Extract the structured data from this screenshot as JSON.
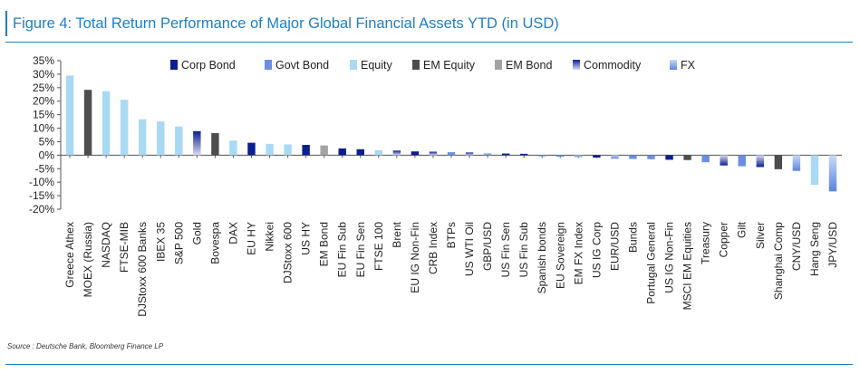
{
  "title": "Figure 4: Total Return Performance of Major Global Financial Assets YTD (in USD)",
  "source": "Source : Deutsche Bank, Bloomberg Finance LP",
  "colors": {
    "accent": "#1f7ec4",
    "Corp Bond": "#0b1f8f",
    "Govt Bond": "#6b8fe0",
    "Equity": "#a9d9f3",
    "EM Equity": "#4d4d4d",
    "EM Bond": "#a3a3a3",
    "Commodity": "#0b1f8f",
    "FX": "#6b8fe0"
  },
  "chart_data": {
    "type": "bar",
    "title": "Figure 4: Total Return Performance of Major Global Financial Assets YTD (in USD)",
    "xlabel": "",
    "ylabel": "",
    "ylim": [
      -20,
      35
    ],
    "yticks": [
      "35%",
      "30%",
      "25%",
      "20%",
      "15%",
      "10%",
      "5%",
      "0%",
      "-5%",
      "-10%",
      "-15%",
      "-20%"
    ],
    "ytick_values": [
      35,
      30,
      25,
      20,
      15,
      10,
      5,
      0,
      -5,
      -10,
      -15,
      -20
    ],
    "legend": [
      "Corp Bond",
      "Govt Bond",
      "Equity",
      "EM Equity",
      "EM Bond",
      "Commodity",
      "FX"
    ],
    "legend_position": "top-right",
    "grid": false,
    "categories": [
      "Greece Athex",
      "MOEX (Russia)",
      "NASDAQ",
      "FTSE-MIB",
      "DJStoxx 600 Banks",
      "IBEX 35",
      "S&P 500",
      "Gold",
      "Bovespa",
      "DAX",
      "EU HY",
      "Nikkei",
      "DJStoxx 600",
      "US HY",
      "EM Bond",
      "EU Fin Sub",
      "EU Fin Sen",
      "FTSE 100",
      "Brent",
      "EU IG Non-Fin",
      "CRB Index",
      "BTPs",
      "US WTI Oil",
      "GBP/USD",
      "US Fin Sen",
      "US Fin Sub",
      "Spanish bonds",
      "EU Sovereign",
      "EM FX Index",
      "US IG Corp",
      "EUR/USD",
      "Bunds",
      "Portugal General",
      "US IG Non-Fin",
      "MSCI EM Equities",
      "Treasury",
      "Copper",
      "Gilt",
      "Silver",
      "Shanghai Comp",
      "CNY/USD",
      "Hang Seng",
      "JPY/USD"
    ],
    "asset_class": [
      "Equity",
      "EM Equity",
      "Equity",
      "Equity",
      "Equity",
      "Equity",
      "Equity",
      "Commodity",
      "EM Equity",
      "Equity",
      "Corp Bond",
      "Equity",
      "Equity",
      "Corp Bond",
      "EM Bond",
      "Corp Bond",
      "Corp Bond",
      "Equity",
      "Commodity",
      "Corp Bond",
      "Commodity",
      "Govt Bond",
      "Commodity",
      "FX",
      "Corp Bond",
      "Corp Bond",
      "Govt Bond",
      "Govt Bond",
      "FX",
      "Corp Bond",
      "FX",
      "Govt Bond",
      "Govt Bond",
      "Corp Bond",
      "EM Equity",
      "Govt Bond",
      "Commodity",
      "Govt Bond",
      "Commodity",
      "EM Equity",
      "FX",
      "Equity",
      "FX"
    ],
    "values": [
      29.5,
      24.2,
      23.7,
      20.5,
      13.3,
      12.5,
      10.6,
      8.9,
      8.2,
      5.4,
      4.6,
      4.2,
      4.0,
      3.8,
      3.6,
      2.5,
      2.2,
      1.8,
      1.7,
      1.4,
      1.3,
      1.1,
      1.0,
      0.8,
      0.6,
      0.5,
      -0.4,
      -0.6,
      -0.7,
      -0.9,
      -1.3,
      -1.4,
      -1.5,
      -1.7,
      -1.8,
      -2.6,
      -3.8,
      -4.1,
      -4.4,
      -5.2,
      -5.8,
      -11.0,
      -13.4
    ]
  }
}
